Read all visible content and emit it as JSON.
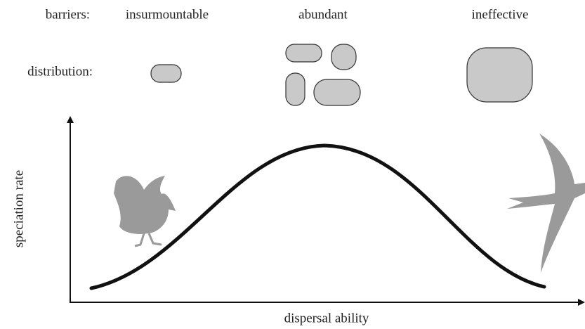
{
  "header": {
    "barriers_label": "barriers:",
    "barriers": [
      "insurmountable",
      "abundant",
      "ineffective"
    ],
    "distribution_label": "distribution:"
  },
  "axes": {
    "y_label": "speciation rate",
    "x_label": "dispersal ability"
  }
}
